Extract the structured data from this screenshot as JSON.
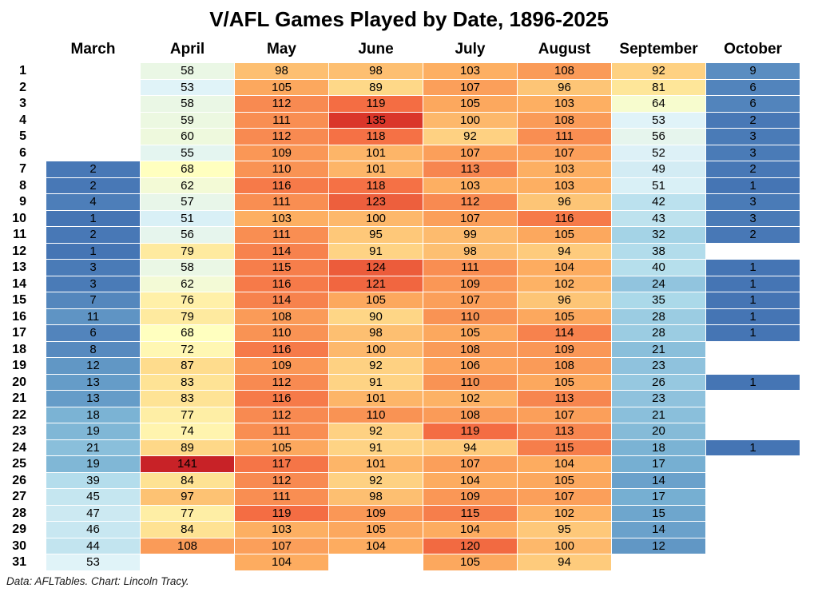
{
  "title": "V/AFL Games Played by Date, 1896-2025",
  "footer": "Data: AFLTables. Chart: Lincoln Tracy.",
  "chart_data": {
    "type": "heatmap",
    "title": "V/AFL Games Played by Date, 1896-2025",
    "columns": [
      "March",
      "April",
      "May",
      "June",
      "July",
      "August",
      "September",
      "October"
    ],
    "rows_label_meaning": "day of month",
    "days": [
      1,
      2,
      3,
      4,
      5,
      6,
      7,
      8,
      9,
      10,
      11,
      12,
      13,
      14,
      15,
      16,
      17,
      18,
      19,
      20,
      21,
      22,
      23,
      24,
      25,
      26,
      27,
      28,
      29,
      30,
      31
    ],
    "values": [
      [
        null,
        58,
        98,
        98,
        103,
        108,
        92,
        9
      ],
      [
        null,
        53,
        105,
        89,
        107,
        96,
        81,
        6
      ],
      [
        null,
        58,
        112,
        119,
        105,
        103,
        64,
        6
      ],
      [
        null,
        59,
        111,
        135,
        100,
        108,
        53,
        2
      ],
      [
        null,
        60,
        112,
        118,
        92,
        111,
        56,
        3
      ],
      [
        null,
        55,
        109,
        101,
        107,
        107,
        52,
        3
      ],
      [
        2,
        68,
        110,
        101,
        113,
        103,
        49,
        2
      ],
      [
        2,
        62,
        116,
        118,
        103,
        103,
        51,
        1
      ],
      [
        4,
        57,
        111,
        123,
        112,
        96,
        42,
        3
      ],
      [
        1,
        51,
        103,
        100,
        107,
        116,
        43,
        3
      ],
      [
        2,
        56,
        111,
        95,
        99,
        105,
        32,
        2
      ],
      [
        1,
        79,
        114,
        91,
        98,
        94,
        38,
        null
      ],
      [
        3,
        58,
        115,
        124,
        111,
        104,
        40,
        1
      ],
      [
        3,
        62,
        116,
        121,
        109,
        102,
        24,
        1
      ],
      [
        7,
        76,
        114,
        105,
        107,
        96,
        35,
        1
      ],
      [
        11,
        79,
        108,
        90,
        110,
        105,
        28,
        1
      ],
      [
        6,
        68,
        110,
        98,
        105,
        114,
        28,
        1
      ],
      [
        8,
        72,
        116,
        100,
        108,
        109,
        21,
        null
      ],
      [
        12,
        87,
        109,
        92,
        106,
        108,
        23,
        null
      ],
      [
        13,
        83,
        112,
        91,
        110,
        105,
        26,
        1
      ],
      [
        13,
        83,
        116,
        101,
        102,
        113,
        23,
        null
      ],
      [
        18,
        77,
        112,
        110,
        108,
        107,
        21,
        null
      ],
      [
        19,
        74,
        111,
        92,
        119,
        113,
        20,
        null
      ],
      [
        21,
        89,
        105,
        91,
        94,
        115,
        18,
        1
      ],
      [
        19,
        141,
        117,
        101,
        107,
        104,
        17,
        null
      ],
      [
        39,
        84,
        112,
        92,
        104,
        105,
        14,
        null
      ],
      [
        45,
        97,
        111,
        98,
        109,
        107,
        17,
        null
      ],
      [
        47,
        77,
        119,
        109,
        115,
        102,
        15,
        null
      ],
      [
        46,
        84,
        103,
        105,
        104,
        95,
        14,
        null
      ],
      [
        44,
        108,
        107,
        104,
        120,
        100,
        12,
        null
      ],
      [
        53,
        null,
        104,
        null,
        105,
        94,
        null,
        null
      ]
    ],
    "value_min": 1,
    "value_max": 141,
    "colorscale": {
      "name": "RdYlBu reversed (blue=low, red=high)",
      "stops": [
        "#313695",
        "#4575b4",
        "#74add1",
        "#abd9e9",
        "#e0f3f8",
        "#ffffbf",
        "#fee090",
        "#fdae61",
        "#f46d43",
        "#d73027",
        "#a50026"
      ],
      "value_points": [
        [
          1,
          0.1
        ],
        [
          12,
          0.16
        ],
        [
          21,
          0.24
        ],
        [
          28,
          0.27
        ],
        [
          42,
          0.33
        ],
        [
          53,
          0.4
        ],
        [
          68,
          0.5
        ],
        [
          81,
          0.58
        ],
        [
          92,
          0.63
        ],
        [
          105,
          0.71
        ],
        [
          112,
          0.755
        ],
        [
          119,
          0.8
        ],
        [
          135,
          0.89
        ],
        [
          141,
          0.93
        ]
      ]
    }
  }
}
